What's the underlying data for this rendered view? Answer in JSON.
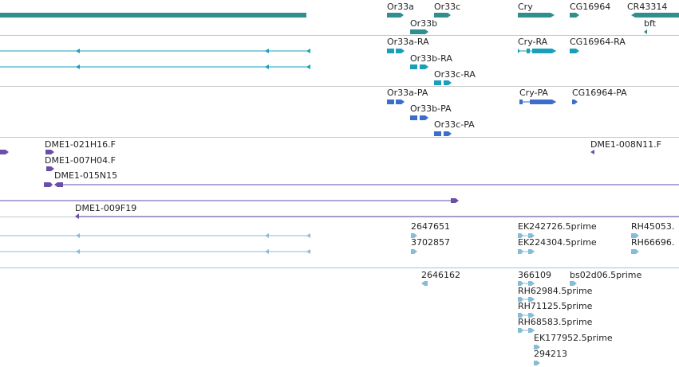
{
  "colors": {
    "gene": "#2f8f8f",
    "mrna": "#1a9fb8",
    "protein": "#3a6ec8",
    "bac": "#6a4ea8",
    "est": "#86bcd8",
    "divider": "#c8c8c8",
    "divider_est": "#9fc4dc"
  },
  "tracks": {
    "genes": {
      "labels": [
        {
          "id": "or33a",
          "text": "Or33a"
        },
        {
          "id": "or33c",
          "text": "Or33c"
        },
        {
          "id": "cry",
          "text": "Cry"
        },
        {
          "id": "cg16964",
          "text": "CG16964"
        },
        {
          "id": "cr43314",
          "text": "CR43314"
        },
        {
          "id": "or33b",
          "text": "Or33b"
        },
        {
          "id": "bft",
          "text": "bft"
        }
      ]
    },
    "transcripts": {
      "labels": [
        {
          "id": "or33a-ra",
          "text": "Or33a-RA"
        },
        {
          "id": "cry-ra",
          "text": "Cry-RA"
        },
        {
          "id": "cg16964-ra",
          "text": "CG16964-RA"
        },
        {
          "id": "or33b-ra",
          "text": "Or33b-RA"
        },
        {
          "id": "or33c-ra",
          "text": "Or33c-RA"
        }
      ]
    },
    "proteins": {
      "labels": [
        {
          "id": "or33a-pa",
          "text": "Or33a-PA"
        },
        {
          "id": "cry-pa",
          "text": "Cry-PA"
        },
        {
          "id": "cg16964-pa",
          "text": "CG16964-PA"
        },
        {
          "id": "or33b-pa",
          "text": "Or33b-PA"
        },
        {
          "id": "or33c-pa",
          "text": "Or33c-PA"
        }
      ]
    },
    "bac_clones": {
      "labels": [
        {
          "id": "dme1-021h16",
          "text": "DME1-021H16.F"
        },
        {
          "id": "dme1-008n11",
          "text": "DME1-008N11.F"
        },
        {
          "id": "dme1-007h04",
          "text": "DME1-007H04.F"
        },
        {
          "id": "dme1-015n15",
          "text": "DME1-015N15"
        },
        {
          "id": "dme1-009f19",
          "text": "DME1-009F19"
        }
      ]
    },
    "cdna": {
      "labels": [
        {
          "id": "c2647651",
          "text": "2647651"
        },
        {
          "id": "ek242726",
          "text": "EK242726.5prime"
        },
        {
          "id": "rh45053",
          "text": "RH45053."
        },
        {
          "id": "c3702857",
          "text": "3702857"
        },
        {
          "id": "ek224304",
          "text": "EK224304.5prime"
        },
        {
          "id": "rh66696",
          "text": "RH66696."
        }
      ]
    },
    "est": {
      "labels": [
        {
          "id": "c2646162",
          "text": "2646162"
        },
        {
          "id": "c366109",
          "text": "366109"
        },
        {
          "id": "bs02d06",
          "text": "bs02d06.5prime"
        },
        {
          "id": "rh62984",
          "text": "RH62984.5prime"
        },
        {
          "id": "rh71125",
          "text": "RH71125.5prime"
        },
        {
          "id": "rh68583",
          "text": "RH68583.5prime"
        },
        {
          "id": "ek177952",
          "text": "EK177952.5prime"
        },
        {
          "id": "c294213",
          "text": "294213"
        }
      ]
    }
  }
}
